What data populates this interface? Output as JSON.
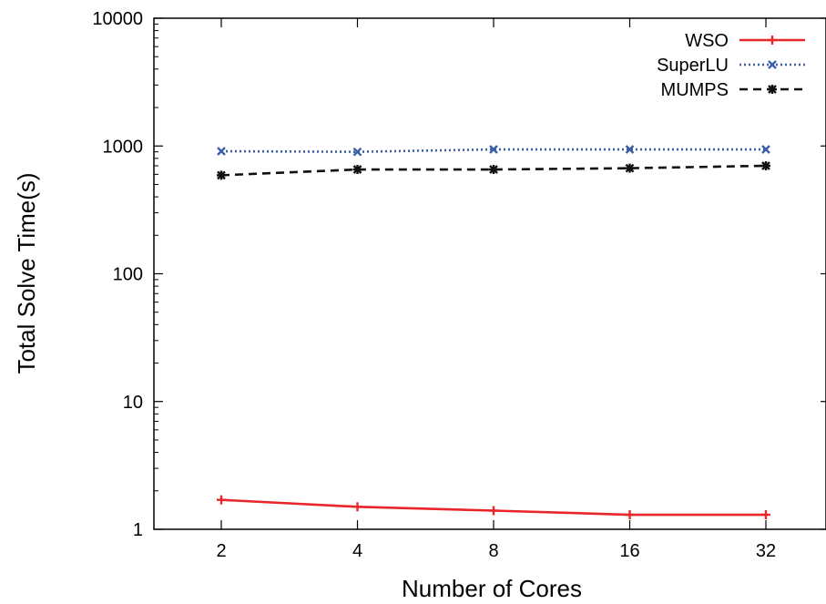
{
  "chart_data": {
    "type": "line",
    "xlabel": "Number of Cores",
    "ylabel": "Total Solve Time(s)",
    "x_scale": "log2",
    "y_scale": "log10",
    "ylim": [
      1,
      10000
    ],
    "categories": [
      "2",
      "4",
      "8",
      "16",
      "32"
    ],
    "x": [
      2,
      4,
      8,
      16,
      32
    ],
    "y_ticks": [
      "1",
      "10",
      "100",
      "1000",
      "10000"
    ],
    "y_tick_values": [
      1,
      10,
      100,
      1000,
      10000
    ],
    "grid": false,
    "legend_position": "top-right",
    "series": [
      {
        "name": "WSO",
        "color": "#e8262b",
        "style": "solid",
        "marker": "plus",
        "values": [
          1.7,
          1.5,
          1.4,
          1.3,
          1.3
        ]
      },
      {
        "name": "SuperLU",
        "color": "#3a5fa8",
        "style": "dotted",
        "marker": "cross",
        "values": [
          910,
          900,
          940,
          940,
          940
        ]
      },
      {
        "name": "MUMPS",
        "color": "#111111",
        "style": "dashed",
        "marker": "star",
        "values": [
          590,
          655,
          655,
          670,
          700
        ]
      }
    ]
  }
}
